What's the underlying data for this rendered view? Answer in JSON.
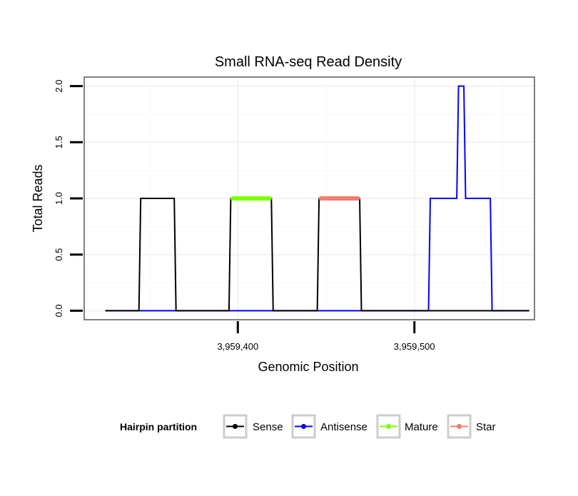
{
  "chart_data": {
    "type": "line",
    "title": "Small RNA-seq Read Density",
    "xlabel": "Genomic Position",
    "ylabel": "Total Reads",
    "xlim": [
      3959313,
      3959568
    ],
    "ylim": [
      -0.08,
      2.08
    ],
    "x_ticks": [
      {
        "value": 3959400,
        "label": "3,959,400"
      },
      {
        "value": 3959500,
        "label": "3,959,500"
      }
    ],
    "y_ticks": [
      {
        "value": 0.0,
        "label": "0.0"
      },
      {
        "value": 0.5,
        "label": "0.5"
      },
      {
        "value": 1.0,
        "label": "1.0"
      },
      {
        "value": 1.5,
        "label": "1.5"
      },
      {
        "value": 2.0,
        "label": "2.0"
      }
    ],
    "grid": true,
    "legend": {
      "title": "Hairpin partition",
      "position": "bottom",
      "entries": [
        "Sense",
        "Antisense",
        "Mature",
        "Star"
      ]
    },
    "series": [
      {
        "name": "Antisense",
        "color": "#0000ff",
        "x": [
          3959325,
          3959508,
          3959509,
          3959524,
          3959525,
          3959528,
          3959529,
          3959543,
          3959544,
          3959565
        ],
        "values": [
          0,
          0,
          1,
          1,
          2,
          2,
          1,
          1,
          0,
          0
        ]
      },
      {
        "name": "Sense",
        "color": "#000000",
        "x": [
          3959325,
          3959344,
          3959345,
          3959364,
          3959365,
          3959395,
          3959396,
          3959419,
          3959420,
          3959445,
          3959446,
          3959469,
          3959470,
          3959565
        ],
        "values": [
          0,
          0,
          1,
          1,
          0,
          0,
          1,
          1,
          0,
          0,
          1,
          1,
          0,
          0
        ]
      },
      {
        "name": "Mature",
        "color": "#7fff00",
        "x": [
          3959397,
          3959418
        ],
        "values": [
          1,
          1
        ]
      },
      {
        "name": "Star",
        "color": "#f08070",
        "x": [
          3959447,
          3959468
        ],
        "values": [
          1,
          1
        ]
      }
    ]
  }
}
